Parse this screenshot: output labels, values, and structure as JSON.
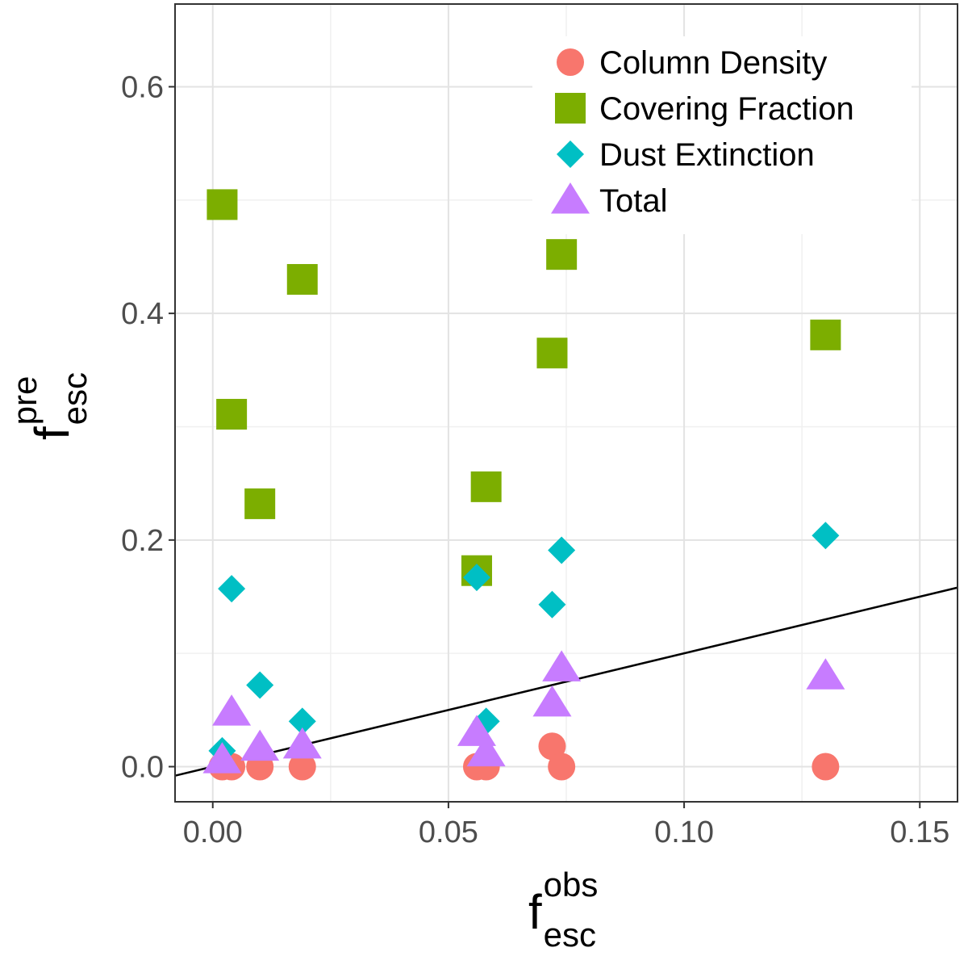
{
  "chart_data": {
    "type": "scatter",
    "x_axis": {
      "label_main": "f",
      "label_sup": "obs",
      "label_sub": "esc",
      "range": [
        -0.008,
        0.158
      ],
      "ticks": [
        0.0,
        0.05,
        0.1,
        0.15
      ],
      "tick_labels": [
        "0.00",
        "0.05",
        "0.10",
        "0.15"
      ],
      "minor_gridlines": [
        0.025,
        0.075,
        0.125
      ]
    },
    "y_axis": {
      "label_main": "f",
      "label_sup": "pre",
      "label_sub": "esc",
      "range": [
        -0.031,
        0.673
      ],
      "ticks": [
        0.0,
        0.2,
        0.4,
        0.6
      ],
      "tick_labels": [
        "0.0",
        "0.2",
        "0.4",
        "0.6"
      ],
      "minor_gridlines": [
        0.1,
        0.3,
        0.5
      ]
    },
    "grid": true,
    "reference_line": {
      "slope": 1,
      "intercept": 0,
      "color": "#000000"
    },
    "legend": {
      "position": "top-right"
    },
    "series": [
      {
        "name": "Column Density",
        "shape": "circle",
        "color": "#F8766D",
        "x": [
          0.002,
          0.004,
          0.01,
          0.019,
          0.056,
          0.058,
          0.072,
          0.074,
          0.13
        ],
        "y": [
          0.0,
          0.0,
          0.0,
          0.0,
          0.0,
          0.0,
          0.018,
          0.0,
          0.0
        ]
      },
      {
        "name": "Covering Fraction",
        "shape": "square",
        "color": "#7CAE00",
        "x": [
          0.002,
          0.004,
          0.01,
          0.019,
          0.056,
          0.058,
          0.072,
          0.074,
          0.13
        ],
        "y": [
          0.496,
          0.311,
          0.232,
          0.43,
          0.173,
          0.247,
          0.365,
          0.452,
          0.381
        ]
      },
      {
        "name": "Dust Extinction",
        "shape": "diamond",
        "color": "#00BFC4",
        "x": [
          0.002,
          0.004,
          0.01,
          0.019,
          0.056,
          0.058,
          0.072,
          0.074,
          0.13
        ],
        "y": [
          0.014,
          0.157,
          0.072,
          0.04,
          0.167,
          0.04,
          0.143,
          0.191,
          0.204
        ]
      },
      {
        "name": "Total",
        "shape": "triangle",
        "color": "#C77CFF",
        "x": [
          0.002,
          0.004,
          0.01,
          0.019,
          0.056,
          0.058,
          0.072,
          0.074,
          0.13
        ],
        "y": [
          0.006,
          0.048,
          0.017,
          0.019,
          0.03,
          0.012,
          0.056,
          0.087,
          0.08
        ]
      }
    ]
  }
}
